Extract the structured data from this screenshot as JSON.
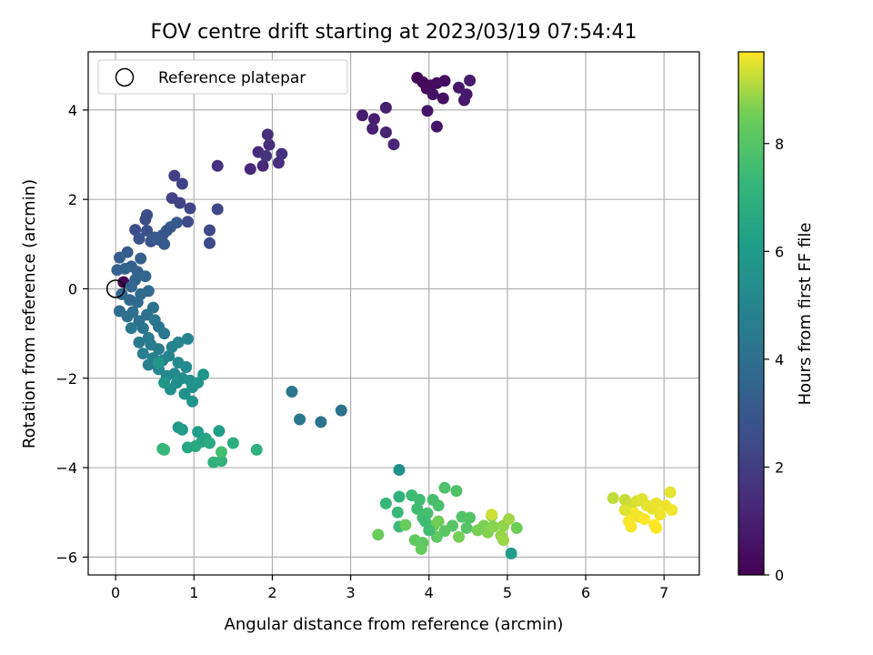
{
  "chart_data": {
    "type": "scatter",
    "title": "FOV centre drift starting at 2023/03/19 07:54:41",
    "xlabel": "Angular distance from reference (arcmin)",
    "ylabel": "Rotation from reference (arcmin)",
    "xlim": [
      -0.35,
      7.45
    ],
    "ylim": [
      -6.4,
      5.3
    ],
    "xticks": [
      0,
      1,
      2,
      3,
      4,
      5,
      6,
      7
    ],
    "yticks": [
      -6,
      -4,
      -2,
      0,
      2,
      4
    ],
    "grid": true,
    "legend": {
      "label": "Reference platepar",
      "placement": "top-left",
      "marker": "open-circle"
    },
    "reference_point": {
      "x": 0,
      "y": 0
    },
    "colorbar": {
      "label": "Hours from first FF file",
      "range": [
        0,
        9.7
      ],
      "ticks": [
        0,
        2,
        4,
        6,
        8
      ],
      "colormap": "viridis"
    },
    "series": [
      {
        "points": [
          [
            3.85,
            4.72
          ],
          [
            3.92,
            4.62
          ],
          [
            3.97,
            4.48
          ],
          [
            4.02,
            4.55
          ],
          [
            4.1,
            4.6
          ],
          [
            4.2,
            4.65
          ],
          [
            4.18,
            4.26
          ],
          [
            4.05,
            4.35
          ],
          [
            3.98,
            3.98
          ],
          [
            4.1,
            3.63
          ],
          [
            4.38,
            4.5
          ],
          [
            4.48,
            4.35
          ],
          [
            4.45,
            4.22
          ],
          [
            4.52,
            4.66
          ],
          [
            3.15,
            3.88
          ],
          [
            3.3,
            3.8
          ],
          [
            3.28,
            3.58
          ],
          [
            3.45,
            4.05
          ],
          [
            3.45,
            3.5
          ],
          [
            3.55,
            3.23
          ],
          [
            1.3,
            2.75
          ],
          [
            1.72,
            2.68
          ],
          [
            1.88,
            2.75
          ],
          [
            1.82,
            3.06
          ],
          [
            1.96,
            3.22
          ],
          [
            1.94,
            3.45
          ],
          [
            2.08,
            2.82
          ],
          [
            2.12,
            3.02
          ],
          [
            1.92,
            2.97
          ],
          [
            0.75,
            2.53
          ],
          [
            0.85,
            2.35
          ],
          [
            0.72,
            2.03
          ],
          [
            0.82,
            1.92
          ],
          [
            0.95,
            1.8
          ],
          [
            0.92,
            1.5
          ],
          [
            1.3,
            1.78
          ],
          [
            1.2,
            1.31
          ],
          [
            1.2,
            1.02
          ],
          [
            0.4,
            1.65
          ],
          [
            0.38,
            1.55
          ],
          [
            0.25,
            1.32
          ],
          [
            0.4,
            1.3
          ],
          [
            0.3,
            1.12
          ],
          [
            0.45,
            1.06
          ],
          [
            0.55,
            1.1
          ],
          [
            0.6,
            1.2
          ],
          [
            0.65,
            1.3
          ],
          [
            0.7,
            1.38
          ],
          [
            0.78,
            1.48
          ],
          [
            0.62,
            1.0
          ],
          [
            0.5,
            1.15
          ],
          [
            0.15,
            0.82
          ],
          [
            0.05,
            0.7
          ],
          [
            0.2,
            0.5
          ],
          [
            0.32,
            0.68
          ],
          [
            0.28,
            0.38
          ],
          [
            0.02,
            0.42
          ],
          [
            0.12,
            0.45
          ],
          [
            0.25,
            0.2
          ],
          [
            0.38,
            0.28
          ],
          [
            0.1,
            0.15
          ],
          [
            0.2,
            0.05
          ],
          [
            0.08,
            -0.12
          ],
          [
            0.18,
            -0.25
          ],
          [
            0.28,
            -0.3
          ],
          [
            0.32,
            -0.12
          ],
          [
            0.42,
            -0.05
          ],
          [
            0.05,
            -0.5
          ],
          [
            0.22,
            -0.52
          ],
          [
            0.15,
            -0.62
          ],
          [
            0.3,
            -0.72
          ],
          [
            0.4,
            -0.58
          ],
          [
            0.48,
            -0.42
          ],
          [
            0.35,
            -0.88
          ],
          [
            0.5,
            -0.7
          ],
          [
            0.55,
            -0.85
          ],
          [
            0.62,
            -1.0
          ],
          [
            0.2,
            -0.88
          ],
          [
            0.3,
            -1.2
          ],
          [
            0.42,
            -1.1
          ],
          [
            0.45,
            -1.25
          ],
          [
            0.55,
            -1.35
          ],
          [
            0.35,
            -1.45
          ],
          [
            0.48,
            -1.55
          ],
          [
            0.42,
            -1.7
          ],
          [
            0.6,
            -1.6
          ],
          [
            0.68,
            -1.5
          ],
          [
            0.72,
            -1.3
          ],
          [
            0.8,
            -1.2
          ],
          [
            0.92,
            -1.12
          ],
          [
            0.55,
            -1.8
          ],
          [
            0.65,
            -1.95
          ],
          [
            0.8,
            -1.65
          ],
          [
            0.9,
            -1.75
          ],
          [
            0.75,
            -1.9
          ],
          [
            0.85,
            -2.0
          ],
          [
            0.78,
            -2.1
          ],
          [
            0.95,
            -2.05
          ],
          [
            0.7,
            -2.25
          ],
          [
            0.88,
            -2.35
          ],
          [
            0.98,
            -2.2
          ],
          [
            1.05,
            -2.1
          ],
          [
            1.12,
            -1.92
          ],
          [
            0.98,
            -2.52
          ],
          [
            0.62,
            -2.1
          ],
          [
            0.55,
            -1.65
          ],
          [
            2.25,
            -2.3
          ],
          [
            2.35,
            -2.92
          ],
          [
            2.62,
            -2.98
          ],
          [
            2.88,
            -2.72
          ],
          [
            0.8,
            -3.1
          ],
          [
            0.85,
            -3.15
          ],
          [
            1.05,
            -3.2
          ],
          [
            1.32,
            -3.18
          ],
          [
            1.15,
            -3.35
          ],
          [
            1.1,
            -3.42
          ],
          [
            0.92,
            -3.55
          ],
          [
            1.02,
            -3.52
          ],
          [
            1.2,
            -3.45
          ],
          [
            1.5,
            -3.45
          ],
          [
            1.8,
            -3.6
          ],
          [
            1.25,
            -3.88
          ],
          [
            1.35,
            -3.85
          ],
          [
            0.6,
            -3.58
          ],
          [
            0.62,
            -3.6
          ],
          [
            1.35,
            -3.65
          ],
          [
            3.62,
            -4.05
          ],
          [
            3.62,
            -4.65
          ],
          [
            3.45,
            -4.8
          ],
          [
            3.6,
            -5.0
          ],
          [
            3.62,
            -5.32
          ],
          [
            3.78,
            -4.62
          ],
          [
            3.88,
            -4.72
          ],
          [
            3.85,
            -4.92
          ],
          [
            3.92,
            -5.12
          ],
          [
            3.98,
            -5.02
          ],
          [
            4.05,
            -4.72
          ],
          [
            4.12,
            -4.85
          ],
          [
            4.2,
            -4.45
          ],
          [
            4.35,
            -4.52
          ],
          [
            4.42,
            -5.1
          ],
          [
            4.52,
            -5.12
          ],
          [
            4.48,
            -5.35
          ],
          [
            4.3,
            -5.3
          ],
          [
            4.2,
            -5.42
          ],
          [
            4.1,
            -5.55
          ],
          [
            3.92,
            -5.68
          ],
          [
            3.82,
            -5.62
          ],
          [
            3.9,
            -5.82
          ],
          [
            4.06,
            -5.3
          ],
          [
            3.7,
            -5.28
          ],
          [
            3.35,
            -5.5
          ],
          [
            4.02,
            -5.35
          ],
          [
            4.12,
            -5.2
          ],
          [
            4.38,
            -5.55
          ],
          [
            4.7,
            -5.3
          ],
          [
            4.75,
            -5.45
          ],
          [
            4.82,
            -5.32
          ],
          [
            4.95,
            -5.3
          ],
          [
            4.92,
            -5.52
          ],
          [
            4.95,
            -5.62
          ],
          [
            5.02,
            -5.15
          ],
          [
            5.12,
            -5.35
          ],
          [
            4.62,
            -5.4
          ],
          [
            4.8,
            -5.08
          ],
          [
            3.95,
            -5.2
          ],
          [
            4.0,
            -5.4
          ],
          [
            5.05,
            -5.92
          ],
          [
            6.35,
            -4.68
          ],
          [
            6.5,
            -4.72
          ],
          [
            6.55,
            -4.82
          ],
          [
            6.58,
            -4.95
          ],
          [
            6.65,
            -4.75
          ],
          [
            6.72,
            -4.7
          ],
          [
            6.78,
            -4.85
          ],
          [
            6.85,
            -4.92
          ],
          [
            6.9,
            -4.8
          ],
          [
            6.95,
            -5.05
          ],
          [
            6.68,
            -5.1
          ],
          [
            6.62,
            -5.02
          ],
          [
            6.55,
            -5.2
          ],
          [
            6.58,
            -5.32
          ],
          [
            6.75,
            -5.15
          ],
          [
            6.88,
            -5.28
          ],
          [
            6.9,
            -5.35
          ],
          [
            7.08,
            -4.55
          ],
          [
            7.02,
            -4.85
          ],
          [
            7.1,
            -4.95
          ],
          [
            6.5,
            -4.95
          ],
          [
            4.8,
            -5.05
          ]
        ],
        "hours": [
          0.1,
          0.2,
          0.3,
          0.35,
          0.4,
          0.45,
          0.5,
          0.55,
          0.6,
          0.65,
          0.7,
          0.75,
          0.8,
          0.85,
          0.9,
          0.95,
          1.0,
          1.05,
          1.1,
          1.15,
          1.65,
          1.3,
          1.35,
          1.4,
          1.45,
          1.5,
          1.55,
          1.6,
          1.7,
          2.1,
          2.15,
          2.2,
          2.25,
          2.3,
          2.35,
          2.4,
          2.45,
          2.5,
          2.55,
          2.6,
          2.65,
          2.7,
          2.75,
          2.8,
          2.85,
          2.9,
          2.95,
          3.0,
          3.05,
          3.1,
          3.15,
          3.2,
          3.25,
          3.3,
          3.35,
          3.4,
          3.45,
          3.5,
          3.55,
          3.6,
          0.05,
          3.6,
          3.65,
          3.7,
          3.75,
          3.8,
          3.85,
          3.9,
          3.95,
          4.0,
          4.05,
          4.1,
          4.15,
          4.2,
          4.25,
          4.3,
          4.35,
          4.4,
          4.45,
          4.5,
          4.55,
          4.6,
          4.65,
          4.7,
          4.75,
          4.8,
          4.85,
          4.9,
          4.95,
          5.0,
          5.05,
          5.1,
          5.15,
          5.2,
          5.25,
          5.3,
          5.35,
          5.4,
          5.45,
          5.5,
          5.55,
          5.6,
          5.65,
          5.7,
          5.75,
          5.8,
          4.3,
          4.25,
          4.2,
          4.15,
          5.9,
          6.0,
          6.1,
          6.2,
          6.3,
          6.4,
          6.5,
          6.6,
          6.7,
          6.8,
          6.9,
          7.0,
          7.1,
          7.2,
          7.3,
          7.6,
          5.5,
          6.95,
          7.3,
          7.35,
          7.4,
          7.45,
          7.5,
          7.55,
          7.6,
          7.65,
          7.7,
          7.75,
          7.8,
          7.85,
          7.9,
          7.95,
          8.0,
          8.05,
          8.1,
          8.15,
          8.2,
          8.25,
          8.3,
          8.35,
          8.4,
          8.45,
          8.5,
          8.55,
          8.6,
          8.65,
          8.7,
          8.75,
          8.8,
          8.85,
          8.9,
          8.95,
          8.5,
          8.6,
          8.65,
          7.5,
          7.55,
          6.0,
          9.2,
          9.25,
          9.3,
          9.35,
          9.4,
          9.45,
          9.5,
          9.52,
          9.55,
          9.58,
          9.6,
          9.62,
          9.64,
          9.66,
          9.68,
          9.7,
          9.7,
          9.5,
          9.55,
          9.6,
          9.45,
          9.3
        ]
      }
    ]
  }
}
